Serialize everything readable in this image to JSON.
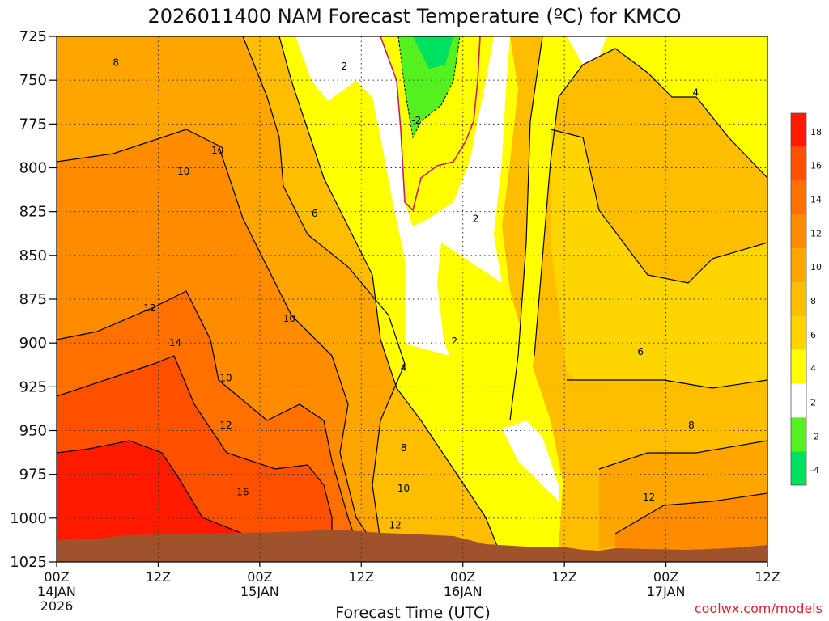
{
  "chart_data": {
    "type": "heatmap",
    "title": "2026011400 NAM Forecast Temperature (ºC) for KMCO",
    "xlabel": "Forecast Time (UTC)",
    "credit": "coolwx.com/models",
    "x_ticks": [
      {
        "hour": 0,
        "line1": "00Z",
        "line2": "14JAN",
        "line3": "2026"
      },
      {
        "hour": 12,
        "line1": "12Z",
        "line2": "",
        "line3": ""
      },
      {
        "hour": 24,
        "line1": "00Z",
        "line2": "15JAN",
        "line3": ""
      },
      {
        "hour": 36,
        "line1": "12Z",
        "line2": "",
        "line3": ""
      },
      {
        "hour": 48,
        "line1": "00Z",
        "line2": "16JAN",
        "line3": ""
      },
      {
        "hour": 60,
        "line1": "12Z",
        "line2": "",
        "line3": ""
      },
      {
        "hour": 72,
        "line1": "00Z",
        "line2": "17JAN",
        "line3": ""
      },
      {
        "hour": 84,
        "line1": "12Z",
        "line2": "",
        "line3": ""
      }
    ],
    "y_ticks": [
      "725",
      "750",
      "775",
      "800",
      "825",
      "850",
      "875",
      "900",
      "925",
      "950",
      "975",
      "1000",
      "1025"
    ],
    "ylim": [
      1025,
      725
    ],
    "xlim": [
      0,
      84
    ],
    "colorbar": {
      "ticks": [
        "18",
        "16",
        "14",
        "12",
        "10",
        "8",
        "6",
        "4",
        "2",
        "-2",
        "-4"
      ],
      "bins": [
        {
          "range": "16..20",
          "color": "#ff1a00"
        },
        {
          "range": "14..16",
          "color": "#ff5000"
        },
        {
          "range": "12..14",
          "color": "#ff7000"
        },
        {
          "range": "10..12",
          "color": "#ff8c00"
        },
        {
          "range": "8..10",
          "color": "#ffa500"
        },
        {
          "range": "6..8",
          "color": "#ffbd00"
        },
        {
          "range": "4..6",
          "color": "#ffd500"
        },
        {
          "range": "2..4",
          "color": "#ffff00"
        },
        {
          "range": "-2..2",
          "color": "#ffffff"
        },
        {
          "range": "-4..-2",
          "color": "#55f020"
        },
        {
          "range": "-6..-4",
          "color": "#00e060"
        }
      ]
    },
    "terrain_color": "#a0522d",
    "zero_isotherm_color": "#c0206a",
    "contour_labels": [
      {
        "text": "8",
        "hour": 7,
        "p": 740
      },
      {
        "text": "10",
        "hour": 19,
        "p": 790
      },
      {
        "text": "10",
        "hour": 15,
        "p": 802
      },
      {
        "text": "6",
        "hour": 30.5,
        "p": 826
      },
      {
        "text": "2",
        "hour": 34,
        "p": 742
      },
      {
        "text": "-2",
        "hour": 42.5,
        "p": 773
      },
      {
        "text": "2",
        "hour": 49.5,
        "p": 829
      },
      {
        "text": "2",
        "hour": 47,
        "p": 899
      },
      {
        "text": "4",
        "hour": 75.5,
        "p": 757
      },
      {
        "text": "12",
        "hour": 11,
        "p": 880
      },
      {
        "text": "14",
        "hour": 14,
        "p": 900
      },
      {
        "text": "10",
        "hour": 27.5,
        "p": 886
      },
      {
        "text": "10",
        "hour": 20,
        "p": 920
      },
      {
        "text": "4",
        "hour": 41,
        "p": 914
      },
      {
        "text": "6",
        "hour": 69,
        "p": 905
      },
      {
        "text": "12",
        "hour": 20,
        "p": 947
      },
      {
        "text": "8",
        "hour": 41,
        "p": 960
      },
      {
        "text": "8",
        "hour": 75,
        "p": 947
      },
      {
        "text": "16",
        "hour": 22,
        "p": 985
      },
      {
        "text": "10",
        "hour": 41,
        "p": 983
      },
      {
        "text": "12",
        "hour": 70,
        "p": 988
      },
      {
        "text": "12",
        "hour": 40,
        "p": 1004
      }
    ]
  }
}
